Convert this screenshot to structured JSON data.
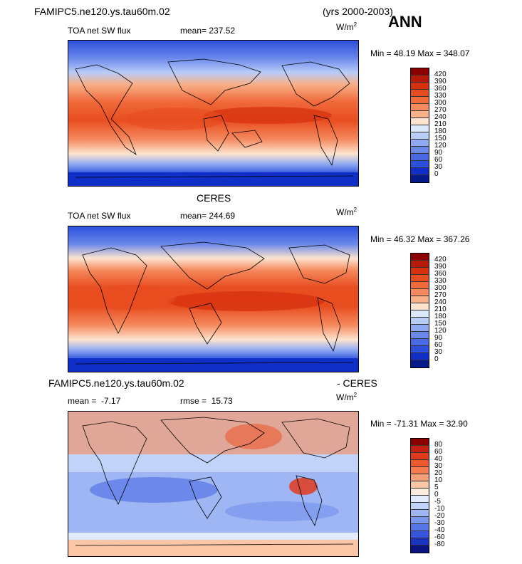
{
  "header": {
    "case_name": "FAMIPC5.ne120.ys.tau60m.02",
    "years": "(yrs 2000-2003)",
    "season": "ANN"
  },
  "panels": [
    {
      "title": "",
      "field": "TOA net SW flux",
      "stat_label": "mean=",
      "stat_value": "237.52",
      "unit": "W/m",
      "unit_exp": "2",
      "range_text": "Min =  48.19 Max = 348.07",
      "levels": [
        "420",
        "390",
        "360",
        "330",
        "300",
        "270",
        "240",
        "210",
        "180",
        "150",
        "120",
        "90",
        "60",
        "30",
        "0"
      ]
    },
    {
      "title": "CERES",
      "field": "TOA net SW flux",
      "stat_label": "mean=",
      "stat_value": "244.69",
      "unit": "W/m",
      "unit_exp": "2",
      "range_text": "Min =  46.32 Max = 367.26",
      "levels": [
        "420",
        "390",
        "360",
        "330",
        "300",
        "270",
        "240",
        "210",
        "180",
        "150",
        "120",
        "90",
        "60",
        "30",
        "0"
      ]
    },
    {
      "title_left": "FAMIPC5.ne120.ys.tau60m.02",
      "title_right": "- CERES",
      "mean_label": "mean =",
      "mean_value": "-7.17",
      "rmse_label": "rmse =",
      "rmse_value": "15.73",
      "unit": "W/m",
      "unit_exp": "2",
      "range_text": "Min = -71.31 Max =  32.90",
      "levels": [
        "80",
        "60",
        "40",
        "30",
        "20",
        "10",
        "5",
        "0",
        "-5",
        "-10",
        "-20",
        "-30",
        "-40",
        "-60",
        "-80"
      ]
    }
  ],
  "colors": {
    "full_scale": [
      "#8b0000",
      "#b81a0a",
      "#d6300f",
      "#e84d1f",
      "#f06a3a",
      "#f48a5e",
      "#f8b089",
      "#fde4cf",
      "#dce8fb",
      "#b8cdf8",
      "#8faaf2",
      "#6a87ea",
      "#4a68e3",
      "#2c4fdc",
      "#0f2fc8",
      "#061a8c"
    ],
    "diff_scale": [
      "#8b0000",
      "#c41f12",
      "#e0391c",
      "#ed5a30",
      "#f37c50",
      "#f6a079",
      "#fac6a6",
      "#fdecdd",
      "#e1ebfc",
      "#c2d3f9",
      "#9eb6f4",
      "#7a96ee",
      "#5675e6",
      "#3556dc",
      "#1a34bf",
      "#0a1280"
    ]
  }
}
